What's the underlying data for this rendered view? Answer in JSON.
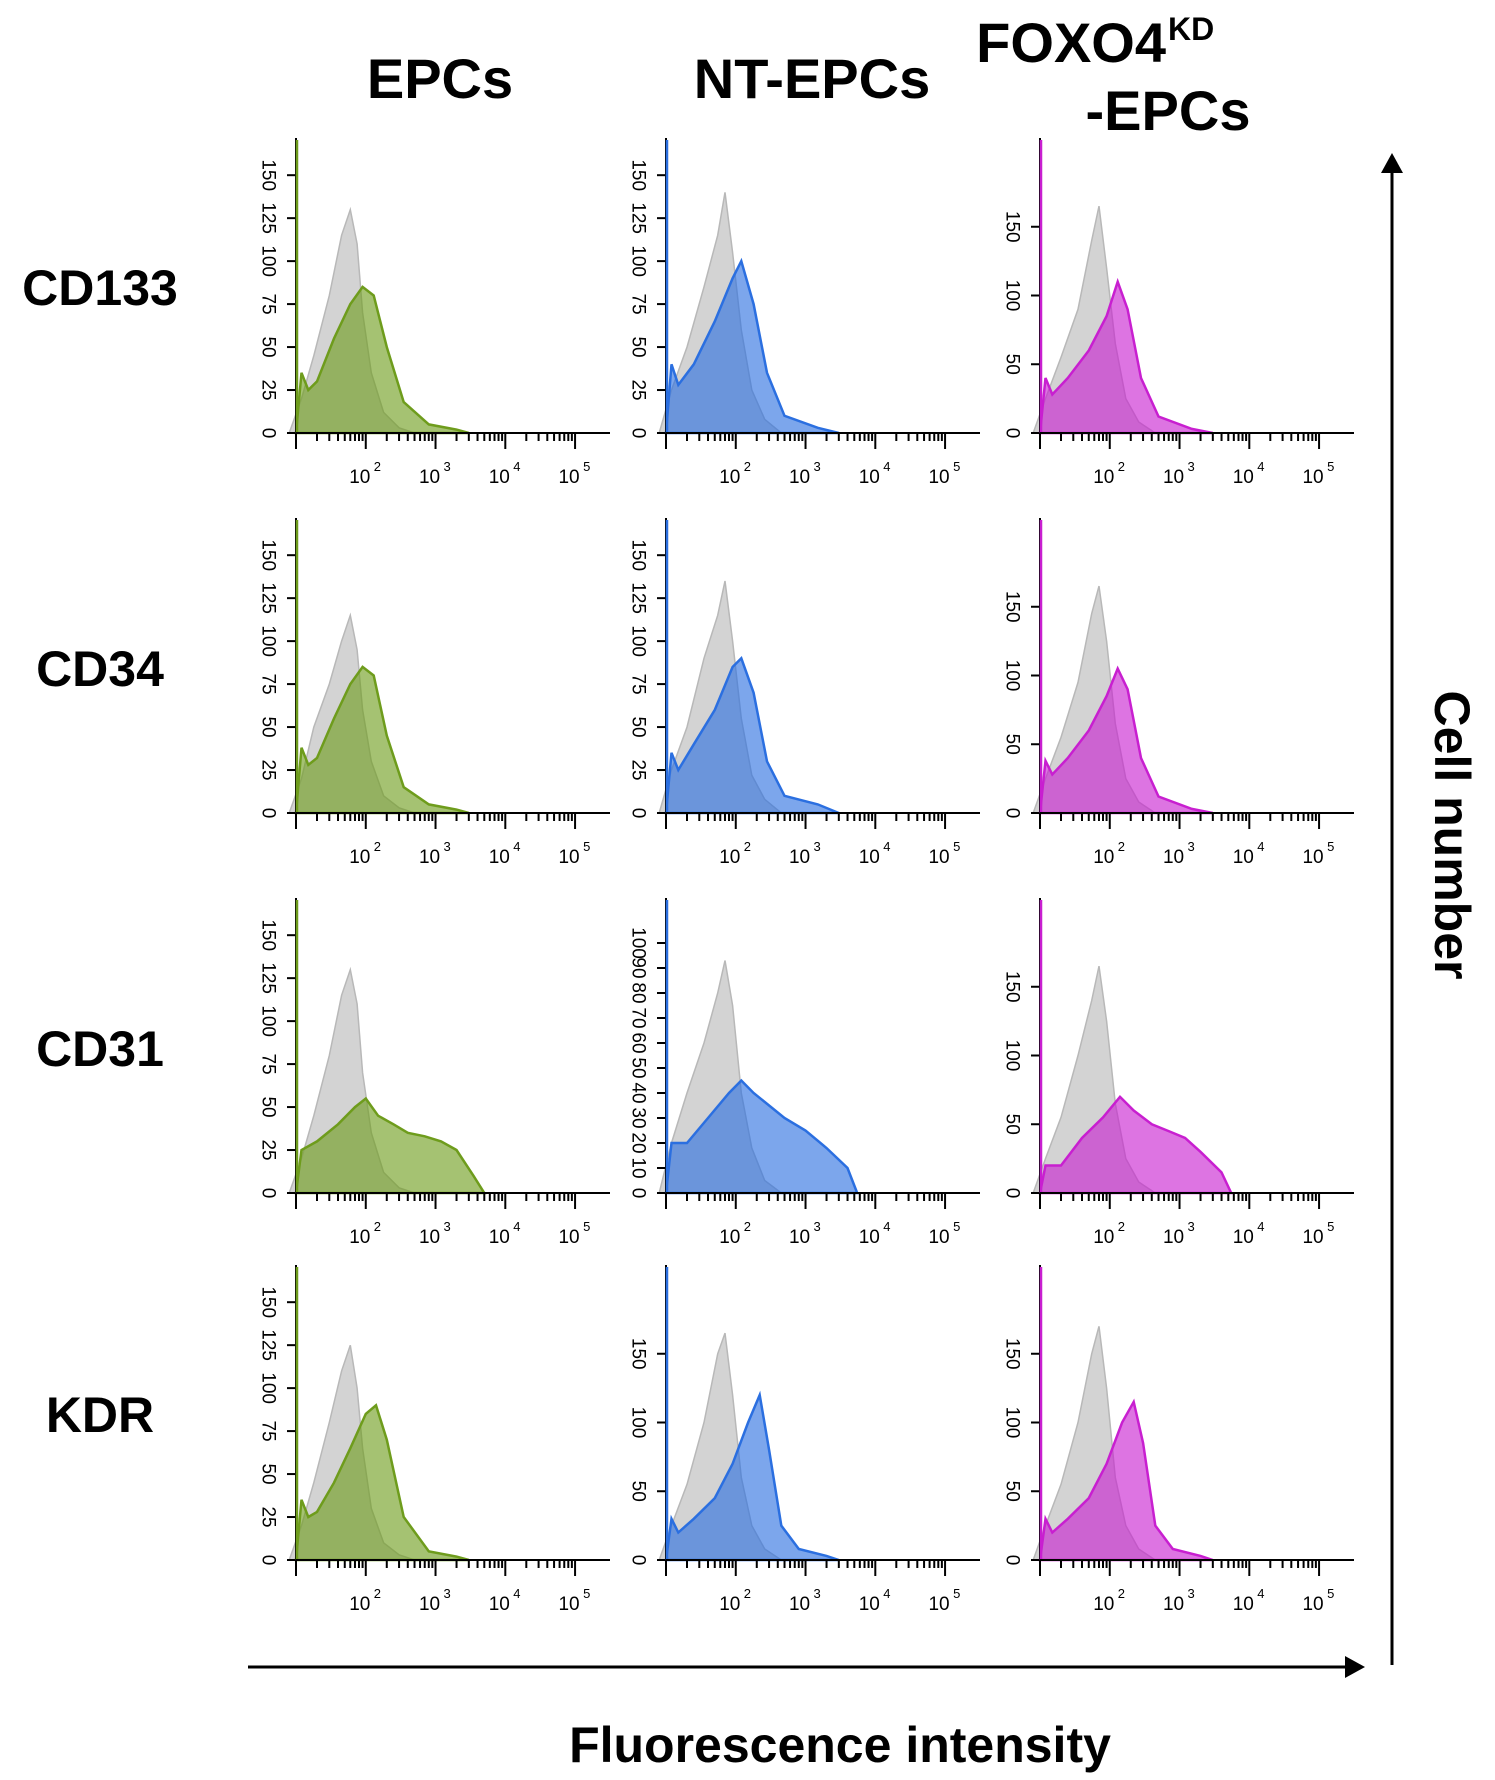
{
  "columns": [
    "EPCs",
    "NT-EPCs",
    "FOXO4",
    "-EPCs"
  ],
  "column_sup": "KD",
  "rows": [
    "CD133",
    "CD34",
    "CD31",
    "KDR"
  ],
  "x_axis_title": "Fluorescence intensity",
  "y_axis_title": "Cell number",
  "x_tick_labels": [
    "10",
    "10",
    "10",
    "10"
  ],
  "x_tick_exponents": [
    "2",
    "3",
    "4",
    "5"
  ],
  "colors": {
    "control": "#d3d3d3",
    "EPCs": "#6e9c1c",
    "NT-EPCs": "#2b6fe0",
    "FOXO4KD-EPCs": "#c81fd0"
  },
  "chart_data": {
    "type": "area",
    "layout": "grid 4x3 flow cytometry histograms",
    "xlabel": "Fluorescence intensity",
    "ylabel": "Cell number",
    "x_scale": "log",
    "x_ticks": [
      100,
      1000,
      10000,
      100000
    ],
    "y_tick_sets": {
      "A": [
        0,
        25,
        50,
        75,
        100,
        125,
        150
      ],
      "B": [
        0,
        50,
        100,
        150
      ],
      "C": [
        0,
        10,
        20,
        30,
        40,
        50,
        60,
        70,
        80,
        90,
        100
      ]
    },
    "panels": [
      {
        "row": "CD133",
        "column": "EPCs",
        "ylim": [
          0,
          160
        ],
        "yticks": "A",
        "control": [
          [
            8,
            0
          ],
          [
            12,
            20
          ],
          [
            18,
            45
          ],
          [
            30,
            80
          ],
          [
            45,
            115
          ],
          [
            60,
            130
          ],
          [
            75,
            110
          ],
          [
            90,
            70
          ],
          [
            120,
            35
          ],
          [
            180,
            12
          ],
          [
            300,
            3
          ],
          [
            500,
            0
          ]
        ],
        "stain": [
          [
            10,
            0
          ],
          [
            12,
            35
          ],
          [
            15,
            25
          ],
          [
            20,
            30
          ],
          [
            35,
            55
          ],
          [
            60,
            75
          ],
          [
            90,
            85
          ],
          [
            130,
            80
          ],
          [
            200,
            50
          ],
          [
            350,
            18
          ],
          [
            800,
            5
          ],
          [
            2000,
            2
          ],
          [
            3000,
            0
          ]
        ]
      },
      {
        "row": "CD133",
        "column": "NT-EPCs",
        "ylim": [
          0,
          160
        ],
        "yticks": "A",
        "control": [
          [
            8,
            0
          ],
          [
            12,
            25
          ],
          [
            20,
            50
          ],
          [
            35,
            85
          ],
          [
            55,
            115
          ],
          [
            70,
            140
          ],
          [
            90,
            105
          ],
          [
            120,
            60
          ],
          [
            170,
            25
          ],
          [
            260,
            8
          ],
          [
            450,
            0
          ]
        ],
        "stain": [
          [
            10,
            0
          ],
          [
            12,
            40
          ],
          [
            15,
            28
          ],
          [
            25,
            40
          ],
          [
            50,
            65
          ],
          [
            90,
            90
          ],
          [
            120,
            100
          ],
          [
            180,
            75
          ],
          [
            280,
            35
          ],
          [
            500,
            10
          ],
          [
            1500,
            3
          ],
          [
            3000,
            0
          ]
        ]
      },
      {
        "row": "CD133",
        "column": "FOXO4KD-EPCs",
        "ylim": [
          0,
          200
        ],
        "yticks": "B",
        "control": [
          [
            8,
            0
          ],
          [
            12,
            25
          ],
          [
            20,
            55
          ],
          [
            35,
            90
          ],
          [
            55,
            140
          ],
          [
            70,
            165
          ],
          [
            90,
            120
          ],
          [
            120,
            65
          ],
          [
            170,
            25
          ],
          [
            260,
            8
          ],
          [
            450,
            0
          ]
        ],
        "stain": [
          [
            10,
            0
          ],
          [
            12,
            40
          ],
          [
            15,
            28
          ],
          [
            25,
            40
          ],
          [
            50,
            60
          ],
          [
            90,
            85
          ],
          [
            130,
            110
          ],
          [
            180,
            90
          ],
          [
            280,
            40
          ],
          [
            500,
            12
          ],
          [
            1500,
            3
          ],
          [
            3000,
            0
          ]
        ]
      },
      {
        "row": "CD34",
        "column": "EPCs",
        "ylim": [
          0,
          160
        ],
        "yticks": "A",
        "control": [
          [
            8,
            0
          ],
          [
            12,
            20
          ],
          [
            18,
            50
          ],
          [
            30,
            75
          ],
          [
            45,
            100
          ],
          [
            60,
            115
          ],
          [
            75,
            95
          ],
          [
            90,
            60
          ],
          [
            120,
            30
          ],
          [
            180,
            10
          ],
          [
            300,
            3
          ],
          [
            500,
            0
          ]
        ],
        "stain": [
          [
            10,
            0
          ],
          [
            12,
            38
          ],
          [
            15,
            28
          ],
          [
            20,
            32
          ],
          [
            35,
            55
          ],
          [
            60,
            75
          ],
          [
            90,
            85
          ],
          [
            130,
            80
          ],
          [
            200,
            45
          ],
          [
            350,
            15
          ],
          [
            800,
            5
          ],
          [
            2000,
            2
          ],
          [
            3000,
            0
          ]
        ]
      },
      {
        "row": "CD34",
        "column": "NT-EPCs",
        "ylim": [
          0,
          160
        ],
        "yticks": "A",
        "control": [
          [
            8,
            0
          ],
          [
            12,
            25
          ],
          [
            20,
            50
          ],
          [
            35,
            90
          ],
          [
            55,
            115
          ],
          [
            70,
            135
          ],
          [
            90,
            100
          ],
          [
            120,
            55
          ],
          [
            170,
            22
          ],
          [
            260,
            8
          ],
          [
            450,
            0
          ]
        ],
        "stain": [
          [
            10,
            0
          ],
          [
            12,
            35
          ],
          [
            15,
            25
          ],
          [
            25,
            40
          ],
          [
            50,
            60
          ],
          [
            90,
            85
          ],
          [
            120,
            90
          ],
          [
            180,
            70
          ],
          [
            280,
            30
          ],
          [
            500,
            10
          ],
          [
            1500,
            5
          ],
          [
            3000,
            0
          ]
        ]
      },
      {
        "row": "CD34",
        "column": "FOXO4KD-EPCs",
        "ylim": [
          0,
          200
        ],
        "yticks": "B",
        "control": [
          [
            8,
            0
          ],
          [
            12,
            25
          ],
          [
            20,
            55
          ],
          [
            35,
            95
          ],
          [
            55,
            145
          ],
          [
            70,
            165
          ],
          [
            90,
            125
          ],
          [
            120,
            65
          ],
          [
            170,
            25
          ],
          [
            260,
            8
          ],
          [
            450,
            0
          ]
        ],
        "stain": [
          [
            10,
            0
          ],
          [
            12,
            38
          ],
          [
            15,
            28
          ],
          [
            25,
            40
          ],
          [
            50,
            60
          ],
          [
            90,
            85
          ],
          [
            130,
            105
          ],
          [
            180,
            90
          ],
          [
            280,
            40
          ],
          [
            500,
            12
          ],
          [
            1500,
            3
          ],
          [
            3000,
            0
          ]
        ]
      },
      {
        "row": "CD31",
        "column": "EPCs",
        "ylim": [
          0,
          160
        ],
        "yticks": "A",
        "control": [
          [
            8,
            0
          ],
          [
            12,
            20
          ],
          [
            18,
            45
          ],
          [
            30,
            80
          ],
          [
            45,
            115
          ],
          [
            60,
            130
          ],
          [
            75,
            110
          ],
          [
            90,
            70
          ],
          [
            120,
            35
          ],
          [
            180,
            12
          ],
          [
            300,
            3
          ],
          [
            500,
            0
          ]
        ],
        "stain": [
          [
            10,
            0
          ],
          [
            12,
            25
          ],
          [
            20,
            30
          ],
          [
            40,
            40
          ],
          [
            70,
            50
          ],
          [
            100,
            55
          ],
          [
            150,
            45
          ],
          [
            250,
            40
          ],
          [
            400,
            35
          ],
          [
            700,
            33
          ],
          [
            1200,
            30
          ],
          [
            2000,
            25
          ],
          [
            3500,
            10
          ],
          [
            5000,
            0
          ]
        ]
      },
      {
        "row": "CD31",
        "column": "NT-EPCs",
        "ylim": [
          0,
          110
        ],
        "yticks": "C",
        "control": [
          [
            8,
            0
          ],
          [
            12,
            20
          ],
          [
            20,
            40
          ],
          [
            35,
            60
          ],
          [
            55,
            80
          ],
          [
            70,
            93
          ],
          [
            90,
            75
          ],
          [
            120,
            40
          ],
          [
            170,
            18
          ],
          [
            260,
            5
          ],
          [
            450,
            0
          ]
        ],
        "stain": [
          [
            10,
            0
          ],
          [
            12,
            20
          ],
          [
            20,
            20
          ],
          [
            40,
            30
          ],
          [
            80,
            40
          ],
          [
            120,
            45
          ],
          [
            180,
            40
          ],
          [
            300,
            35
          ],
          [
            500,
            30
          ],
          [
            1000,
            25
          ],
          [
            2000,
            18
          ],
          [
            4000,
            10
          ],
          [
            5500,
            0
          ]
        ]
      },
      {
        "row": "CD31",
        "column": "FOXO4KD-EPCs",
        "ylim": [
          0,
          200
        ],
        "yticks": "B",
        "control": [
          [
            8,
            0
          ],
          [
            12,
            25
          ],
          [
            20,
            55
          ],
          [
            35,
            100
          ],
          [
            55,
            140
          ],
          [
            70,
            165
          ],
          [
            90,
            125
          ],
          [
            120,
            65
          ],
          [
            170,
            25
          ],
          [
            260,
            8
          ],
          [
            450,
            0
          ]
        ],
        "stain": [
          [
            10,
            0
          ],
          [
            12,
            20
          ],
          [
            20,
            20
          ],
          [
            40,
            40
          ],
          [
            80,
            55
          ],
          [
            140,
            70
          ],
          [
            220,
            60
          ],
          [
            400,
            50
          ],
          [
            700,
            45
          ],
          [
            1200,
            40
          ],
          [
            2000,
            30
          ],
          [
            4000,
            15
          ],
          [
            5500,
            0
          ]
        ]
      },
      {
        "row": "KDR",
        "column": "EPCs",
        "ylim": [
          0,
          160
        ],
        "yticks": "A",
        "control": [
          [
            8,
            0
          ],
          [
            12,
            20
          ],
          [
            18,
            45
          ],
          [
            30,
            80
          ],
          [
            45,
            110
          ],
          [
            60,
            125
          ],
          [
            75,
            100
          ],
          [
            90,
            65
          ],
          [
            120,
            30
          ],
          [
            180,
            10
          ],
          [
            300,
            3
          ],
          [
            500,
            0
          ]
        ],
        "stain": [
          [
            10,
            0
          ],
          [
            12,
            35
          ],
          [
            15,
            25
          ],
          [
            20,
            28
          ],
          [
            35,
            45
          ],
          [
            60,
            65
          ],
          [
            100,
            85
          ],
          [
            140,
            90
          ],
          [
            200,
            70
          ],
          [
            350,
            25
          ],
          [
            800,
            5
          ],
          [
            2000,
            2
          ],
          [
            3000,
            0
          ]
        ]
      },
      {
        "row": "KDR",
        "column": "NT-EPCs",
        "ylim": [
          0,
          200
        ],
        "yticks": "B",
        "control": [
          [
            8,
            0
          ],
          [
            12,
            25
          ],
          [
            20,
            55
          ],
          [
            35,
            100
          ],
          [
            55,
            150
          ],
          [
            70,
            165
          ],
          [
            90,
            120
          ],
          [
            120,
            60
          ],
          [
            170,
            25
          ],
          [
            260,
            8
          ],
          [
            450,
            0
          ]
        ],
        "stain": [
          [
            10,
            0
          ],
          [
            12,
            30
          ],
          [
            15,
            20
          ],
          [
            25,
            30
          ],
          [
            50,
            45
          ],
          [
            90,
            70
          ],
          [
            150,
            100
          ],
          [
            220,
            120
          ],
          [
            300,
            80
          ],
          [
            450,
            25
          ],
          [
            800,
            8
          ],
          [
            2000,
            3
          ],
          [
            3000,
            0
          ]
        ]
      },
      {
        "row": "KDR",
        "column": "FOXO4KD-EPCs",
        "ylim": [
          0,
          200
        ],
        "yticks": "B",
        "control": [
          [
            8,
            0
          ],
          [
            12,
            25
          ],
          [
            20,
            55
          ],
          [
            35,
            100
          ],
          [
            55,
            150
          ],
          [
            70,
            170
          ],
          [
            90,
            125
          ],
          [
            120,
            60
          ],
          [
            170,
            25
          ],
          [
            260,
            8
          ],
          [
            450,
            0
          ]
        ],
        "stain": [
          [
            10,
            0
          ],
          [
            12,
            30
          ],
          [
            15,
            20
          ],
          [
            25,
            30
          ],
          [
            50,
            45
          ],
          [
            90,
            70
          ],
          [
            150,
            100
          ],
          [
            220,
            115
          ],
          [
            300,
            85
          ],
          [
            450,
            25
          ],
          [
            800,
            8
          ],
          [
            2000,
            3
          ],
          [
            3000,
            0
          ]
        ]
      }
    ]
  }
}
